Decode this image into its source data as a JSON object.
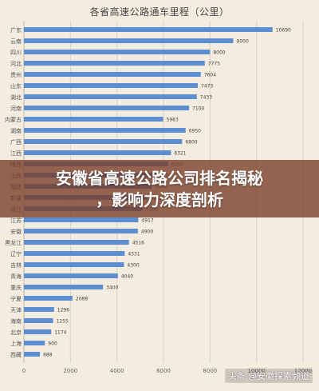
{
  "chart_data": {
    "type": "bar",
    "orientation": "horizontal",
    "title": "各省高速公路通车里程（公里）",
    "categories": [
      "广东",
      "云南",
      "四川",
      "河北",
      "贵州",
      "山东",
      "湖北",
      "河南",
      "内蒙古",
      "湖南",
      "广西",
      "江西",
      "陕西",
      "山西",
      "福建",
      "新疆",
      "浙江",
      "江苏",
      "安徽",
      "黑龙江",
      "辽宁",
      "吉林",
      "青海",
      "重庆",
      "宁夏",
      "天津",
      "海南",
      "北京",
      "上海",
      "西藏"
    ],
    "values": [
      10690,
      9000,
      8000,
      7775,
      7604,
      7473,
      7433,
      7100,
      5983,
      6950,
      6800,
      6321,
      6200,
      5700,
      5500,
      5300,
      5100,
      4917,
      4900,
      4516,
      4331,
      4300,
      4040,
      3400,
      2088,
      1296,
      1255,
      1174,
      900,
      688
    ],
    "xlim": [
      0,
      12000
    ],
    "xticks": [
      "0",
      "2000",
      "4000",
      "6000",
      "8000",
      "10000",
      "12000"
    ],
    "grid": true,
    "bar_color": "#5b8fd0"
  },
  "banner": {
    "line1": "安徽省高速公路公司排名揭秘",
    "line2": "，影响力深度剖析"
  },
  "watermark": "头条 @安徽探索频道"
}
